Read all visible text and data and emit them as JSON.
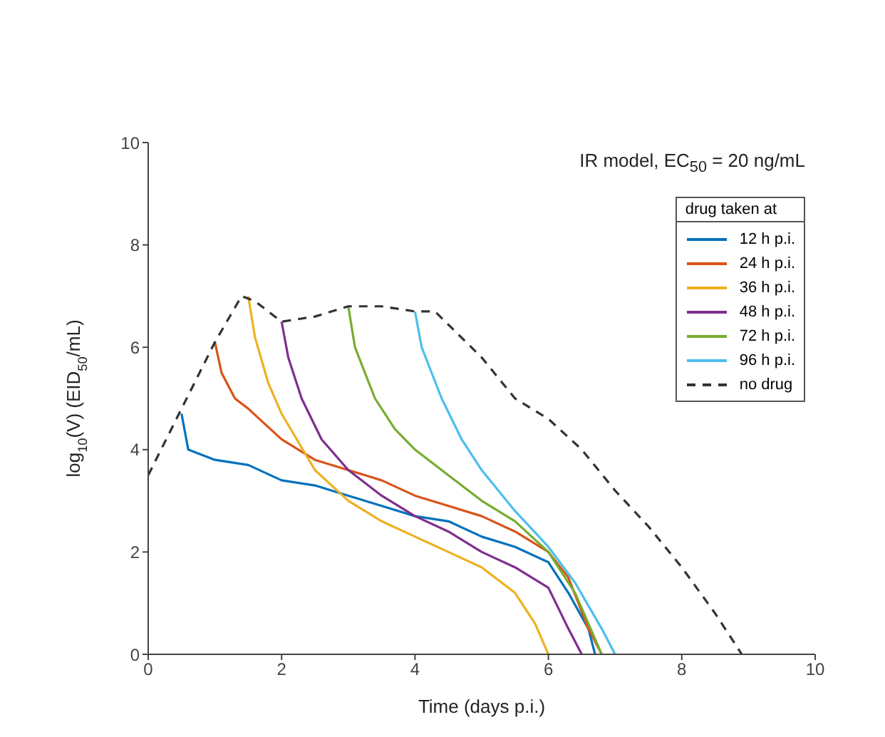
{
  "chart_data": {
    "type": "line",
    "annotations": [
      "IR model, EC$_{50}$ = 20 ng/mL"
    ],
    "xlabel": "Time (days p.i.)",
    "ylabel": "log$_{10}$(V) (EID$_{50}$/mL)",
    "legend_title": "drug taken at",
    "legend": "top right",
    "grid": false,
    "marker": "none",
    "xlim": [
      0,
      10
    ],
    "xticks": [
      0,
      2,
      4,
      6,
      8,
      10
    ],
    "ylim": [
      0,
      10
    ],
    "yticks": [
      0,
      2,
      4,
      6,
      8,
      10
    ],
    "series": [
      {
        "name": "12 h p.i.",
        "color": "#0072bd",
        "line_style": "solid",
        "x": [
          0.5,
          0.6,
          1,
          1.5,
          2,
          2.5,
          3,
          3.5,
          4,
          4.5,
          5,
          5.5,
          6,
          6.3,
          6.6,
          6.7
        ],
        "values": [
          4.7,
          4.0,
          3.8,
          3.7,
          3.4,
          3.3,
          3.1,
          2.9,
          2.7,
          2.6,
          2.3,
          2.1,
          1.8,
          1.2,
          0.5,
          0
        ]
      },
      {
        "name": "24 h p.i.",
        "color": "#d95319",
        "line_style": "solid",
        "x": [
          1,
          1.1,
          1.3,
          1.5,
          2,
          2.5,
          3,
          3.5,
          4,
          4.5,
          5,
          5.5,
          6,
          6.3,
          6.6,
          6.8
        ],
        "values": [
          6.1,
          5.5,
          5.0,
          4.8,
          4.2,
          3.8,
          3.6,
          3.4,
          3.1,
          2.9,
          2.7,
          2.4,
          2.0,
          1.5,
          0.5,
          0
        ]
      },
      {
        "name": "36 h p.i.",
        "color": "#edb120",
        "line_style": "solid",
        "x": [
          1.5,
          1.6,
          1.8,
          2,
          2.5,
          3,
          3.5,
          4,
          4.5,
          5,
          5.5,
          5.8,
          6
        ],
        "values": [
          7.0,
          6.2,
          5.3,
          4.7,
          3.6,
          3.0,
          2.6,
          2.3,
          2.0,
          1.7,
          1.2,
          0.6,
          0
        ]
      },
      {
        "name": "48 h p.i.",
        "color": "#7e2f8e",
        "line_style": "solid",
        "x": [
          2,
          2.1,
          2.3,
          2.6,
          3,
          3.5,
          4,
          4.5,
          5,
          5.5,
          6,
          6.3,
          6.5
        ],
        "values": [
          6.5,
          5.8,
          5.0,
          4.2,
          3.6,
          3.1,
          2.7,
          2.4,
          2.0,
          1.7,
          1.3,
          0.5,
          0
        ]
      },
      {
        "name": "72 h p.i.",
        "color": "#77ac30",
        "line_style": "solid",
        "x": [
          3,
          3.1,
          3.4,
          3.7,
          4,
          4.5,
          5,
          5.5,
          6,
          6.4,
          6.7,
          6.8
        ],
        "values": [
          6.8,
          6.0,
          5.0,
          4.4,
          4.0,
          3.5,
          3.0,
          2.6,
          2.0,
          1.2,
          0.3,
          0
        ]
      },
      {
        "name": "96 h p.i.",
        "color": "#4dbeee",
        "line_style": "solid",
        "x": [
          4,
          4.1,
          4.4,
          4.7,
          5,
          5.5,
          6,
          6.4,
          6.8,
          7
        ],
        "values": [
          6.7,
          6.0,
          5.0,
          4.2,
          3.6,
          2.8,
          2.1,
          1.4,
          0.5,
          0
        ]
      },
      {
        "name": "no drug",
        "color": "#333333",
        "line_style": "dashed",
        "x": [
          0,
          0.5,
          1,
          1.4,
          1.6,
          2,
          2.5,
          3,
          3.5,
          4,
          4.3,
          5,
          5.5,
          6,
          6.5,
          7,
          7.5,
          8,
          8.5,
          8.9
        ],
        "values": [
          3.5,
          4.8,
          6.1,
          7.0,
          6.9,
          6.5,
          6.6,
          6.8,
          6.8,
          6.7,
          6.7,
          5.8,
          5.0,
          4.6,
          4.0,
          3.2,
          2.5,
          1.7,
          0.8,
          0
        ]
      }
    ]
  }
}
